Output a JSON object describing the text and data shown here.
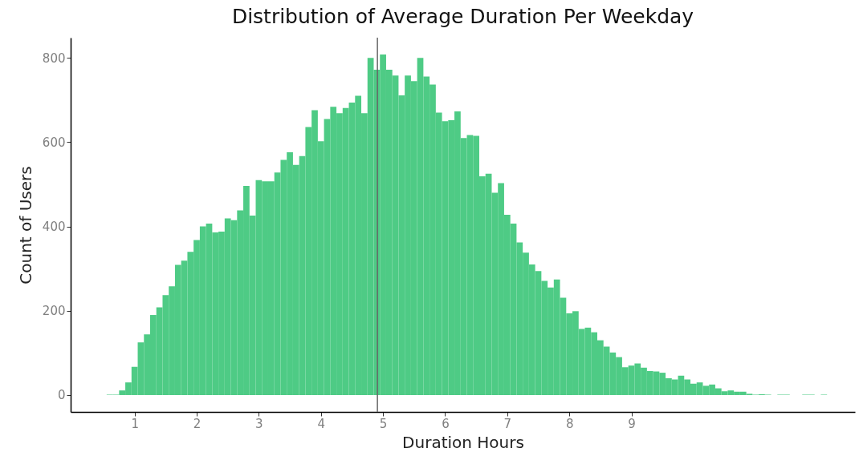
{
  "chart_data": {
    "type": "histogram",
    "title": "Distribution of Average Duration Per Weekday",
    "xlabel": "Duration Hours",
    "ylabel": "Count of Users",
    "bins": [
      0.55,
      0.65,
      0.75,
      0.85,
      0.95,
      1.05,
      1.15,
      1.25,
      1.35,
      1.45,
      1.55,
      1.65,
      1.75,
      1.85,
      1.95,
      2.05,
      2.15,
      2.25,
      2.35,
      2.45,
      2.55,
      2.65,
      2.75,
      2.85,
      2.95,
      3.05,
      3.15,
      3.25,
      3.35,
      3.45,
      3.55,
      3.65,
      3.75,
      3.85,
      3.95,
      4.05,
      4.15,
      4.25,
      4.35,
      4.45,
      4.55,
      4.65,
      4.75,
      4.85,
      4.95,
      5.05,
      5.15,
      5.25,
      5.35,
      5.45,
      5.55,
      5.65,
      5.75,
      5.85,
      5.95,
      6.05,
      6.15,
      6.25,
      6.35,
      6.45,
      6.55,
      6.65,
      6.75,
      6.85,
      6.95,
      7.05,
      7.15,
      7.25,
      7.35,
      7.45,
      7.55,
      7.65,
      7.75,
      7.85,
      7.95,
      8.05,
      8.15,
      8.25,
      8.35,
      8.45,
      8.55,
      8.65,
      8.75,
      8.85,
      8.95,
      9.05,
      9.15,
      9.25,
      9.35,
      9.45,
      9.55,
      9.65,
      9.75,
      9.85,
      9.95,
      10.05,
      10.15,
      10.25,
      10.35,
      10.45,
      10.55,
      10.65,
      10.75,
      10.85,
      10.95,
      11.05,
      11.15,
      11.25,
      11.35,
      11.45,
      11.55,
      11.65,
      11.75,
      11.85,
      11.95,
      12.05,
      12.15
    ],
    "values": [
      1,
      1,
      11,
      30,
      67,
      125,
      144,
      190,
      208,
      237,
      258,
      309,
      319,
      340,
      368,
      400,
      407,
      386,
      388,
      419,
      415,
      438,
      496,
      426,
      510,
      507,
      507,
      528,
      558,
      576,
      546,
      567,
      636,
      676,
      602,
      655,
      684,
      669,
      681,
      694,
      710,
      669,
      800,
      772,
      808,
      772,
      758,
      711,
      758,
      745,
      800,
      756,
      737,
      670,
      650,
      652,
      673,
      610,
      617,
      615,
      519,
      525,
      480,
      503,
      428,
      407,
      362,
      338,
      310,
      294,
      271,
      255,
      274,
      231,
      194,
      199,
      157,
      160,
      149,
      130,
      115,
      101,
      90,
      66,
      70,
      75,
      65,
      57,
      56,
      53,
      40,
      37,
      46,
      37,
      27,
      30,
      22,
      25,
      16,
      9,
      11,
      8,
      8,
      3,
      1,
      2,
      1,
      0,
      1,
      1,
      0,
      0,
      1,
      1,
      0,
      1
    ],
    "color": "#4ecb85",
    "xlim": [
      -0.03,
      12.6
    ],
    "xticks": [
      1,
      2,
      3,
      4,
      5,
      6,
      7,
      8,
      9
    ],
    "ylim": [
      -40,
      848
    ],
    "yticks": [
      0,
      200,
      400,
      600,
      800
    ],
    "grid": false,
    "ref_lines": [
      {
        "axis": "x",
        "value": 4.91,
        "color": "#666666"
      }
    ]
  }
}
